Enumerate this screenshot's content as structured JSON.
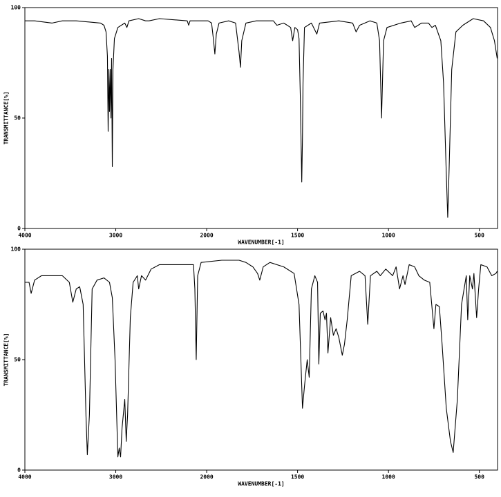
{
  "chart_data": [
    {
      "type": "line",
      "xlabel": "WAVENUMBER[-1]",
      "ylabel": "TRANSMITTANCE[%]",
      "xlim": [
        4000,
        400
      ],
      "ylim": [
        0,
        100
      ],
      "xticks": [
        4000,
        3000,
        2000,
        1500,
        1000,
        500
      ],
      "yticks": [
        0,
        50,
        100
      ],
      "color": "#000000",
      "x": [
        4000,
        3893,
        3700,
        3588,
        3435,
        3168,
        3130,
        3107,
        3092,
        3084,
        3076,
        3069,
        3061,
        3053,
        3046,
        3038,
        3031,
        3015,
        2977,
        2901,
        2878,
        2855,
        2748,
        2672,
        2634,
        2519,
        2214,
        2198,
        2183,
        1992,
        1973,
        1962,
        1955,
        1947,
        1932,
        1879,
        1841,
        1822,
        1814,
        1807,
        1784,
        1727,
        1633,
        1614,
        1576,
        1538,
        1527,
        1515,
        1500,
        1492,
        1485,
        1477,
        1473,
        1470,
        1462,
        1424,
        1394,
        1379,
        1273,
        1197,
        1178,
        1159,
        1102,
        1064,
        1049,
        1038,
        1027,
        1008,
        932,
        875,
        856,
        818,
        780,
        761,
        742,
        712,
        697,
        682,
        674,
        667,
        652,
        629,
        591,
        534,
        477,
        439,
        417,
        402
      ],
      "values": [
        94,
        94,
        93,
        94,
        94,
        93,
        92,
        89,
        78,
        44,
        72,
        53,
        72,
        50,
        77,
        28,
        72,
        86,
        91,
        93,
        91,
        94,
        95,
        94,
        94,
        95,
        94,
        92,
        94,
        94,
        93,
        85,
        79,
        88,
        93,
        94,
        93,
        80,
        73,
        85,
        93,
        94,
        94,
        92,
        93,
        91,
        85,
        91,
        90,
        86,
        60,
        21,
        41,
        66,
        91,
        93,
        88,
        93,
        94,
        93,
        89,
        92,
        94,
        93,
        85,
        50,
        85,
        91,
        93,
        94,
        91,
        93,
        93,
        91,
        92,
        85,
        66,
        25,
        5,
        25,
        72,
        89,
        92,
        95,
        94,
        91,
        85,
        77
      ]
    },
    {
      "type": "line",
      "xlabel": "WAVENUMBER[-1]",
      "ylabel": "TRANSMITTANCE[%]",
      "xlim": [
        4000,
        400
      ],
      "ylim": [
        0,
        100
      ],
      "xticks": [
        4000,
        3000,
        2000,
        1500,
        1000,
        500
      ],
      "yticks": [
        0,
        50,
        100
      ],
      "color": "#000000",
      "x": [
        4000,
        3954,
        3931,
        3893,
        3817,
        3702,
        3588,
        3511,
        3473,
        3435,
        3397,
        3359,
        3328,
        3313,
        3290,
        3260,
        3206,
        3130,
        3069,
        3038,
        3008,
        2977,
        2962,
        2947,
        2931,
        2901,
        2885,
        2870,
        2840,
        2809,
        2763,
        2748,
        2717,
        2672,
        2611,
        2519,
        2367,
        2198,
        2145,
        2130,
        2115,
        2099,
        2061,
        1917,
        1822,
        1784,
        1746,
        1720,
        1708,
        1689,
        1652,
        1576,
        1519,
        1492,
        1473,
        1462,
        1447,
        1436,
        1424,
        1405,
        1390,
        1383,
        1375,
        1360,
        1349,
        1341,
        1333,
        1318,
        1303,
        1288,
        1273,
        1254,
        1242,
        1227,
        1205,
        1159,
        1129,
        1114,
        1099,
        1064,
        1045,
        1015,
        977,
        958,
        939,
        920,
        909,
        886,
        856,
        833,
        803,
        773,
        750,
        739,
        720,
        705,
        682,
        659,
        644,
        621,
        598,
        572,
        564,
        553,
        538,
        530,
        515,
        504,
        492,
        458,
        432,
        409,
        402
      ],
      "values": [
        85,
        85,
        80,
        86,
        88,
        88,
        88,
        85,
        76,
        82,
        83,
        75,
        25,
        7,
        25,
        82,
        86,
        87,
        85,
        78,
        50,
        6,
        10,
        6,
        19,
        32,
        13,
        25,
        69,
        85,
        88,
        82,
        88,
        86,
        91,
        93,
        93,
        93,
        93,
        82,
        50,
        88,
        94,
        95,
        95,
        94,
        92,
        89,
        86,
        92,
        94,
        92,
        89,
        75,
        28,
        38,
        50,
        42,
        82,
        88,
        85,
        48,
        71,
        72,
        68,
        71,
        53,
        69,
        61,
        64,
        60,
        52,
        57,
        68,
        88,
        90,
        88,
        66,
        88,
        90,
        88,
        91,
        88,
        92,
        82,
        88,
        84,
        93,
        92,
        88,
        86,
        85,
        64,
        75,
        74,
        57,
        28,
        13,
        8,
        32,
        75,
        88,
        68,
        88,
        82,
        89,
        69,
        82,
        93,
        92,
        88,
        89,
        90
      ]
    }
  ]
}
